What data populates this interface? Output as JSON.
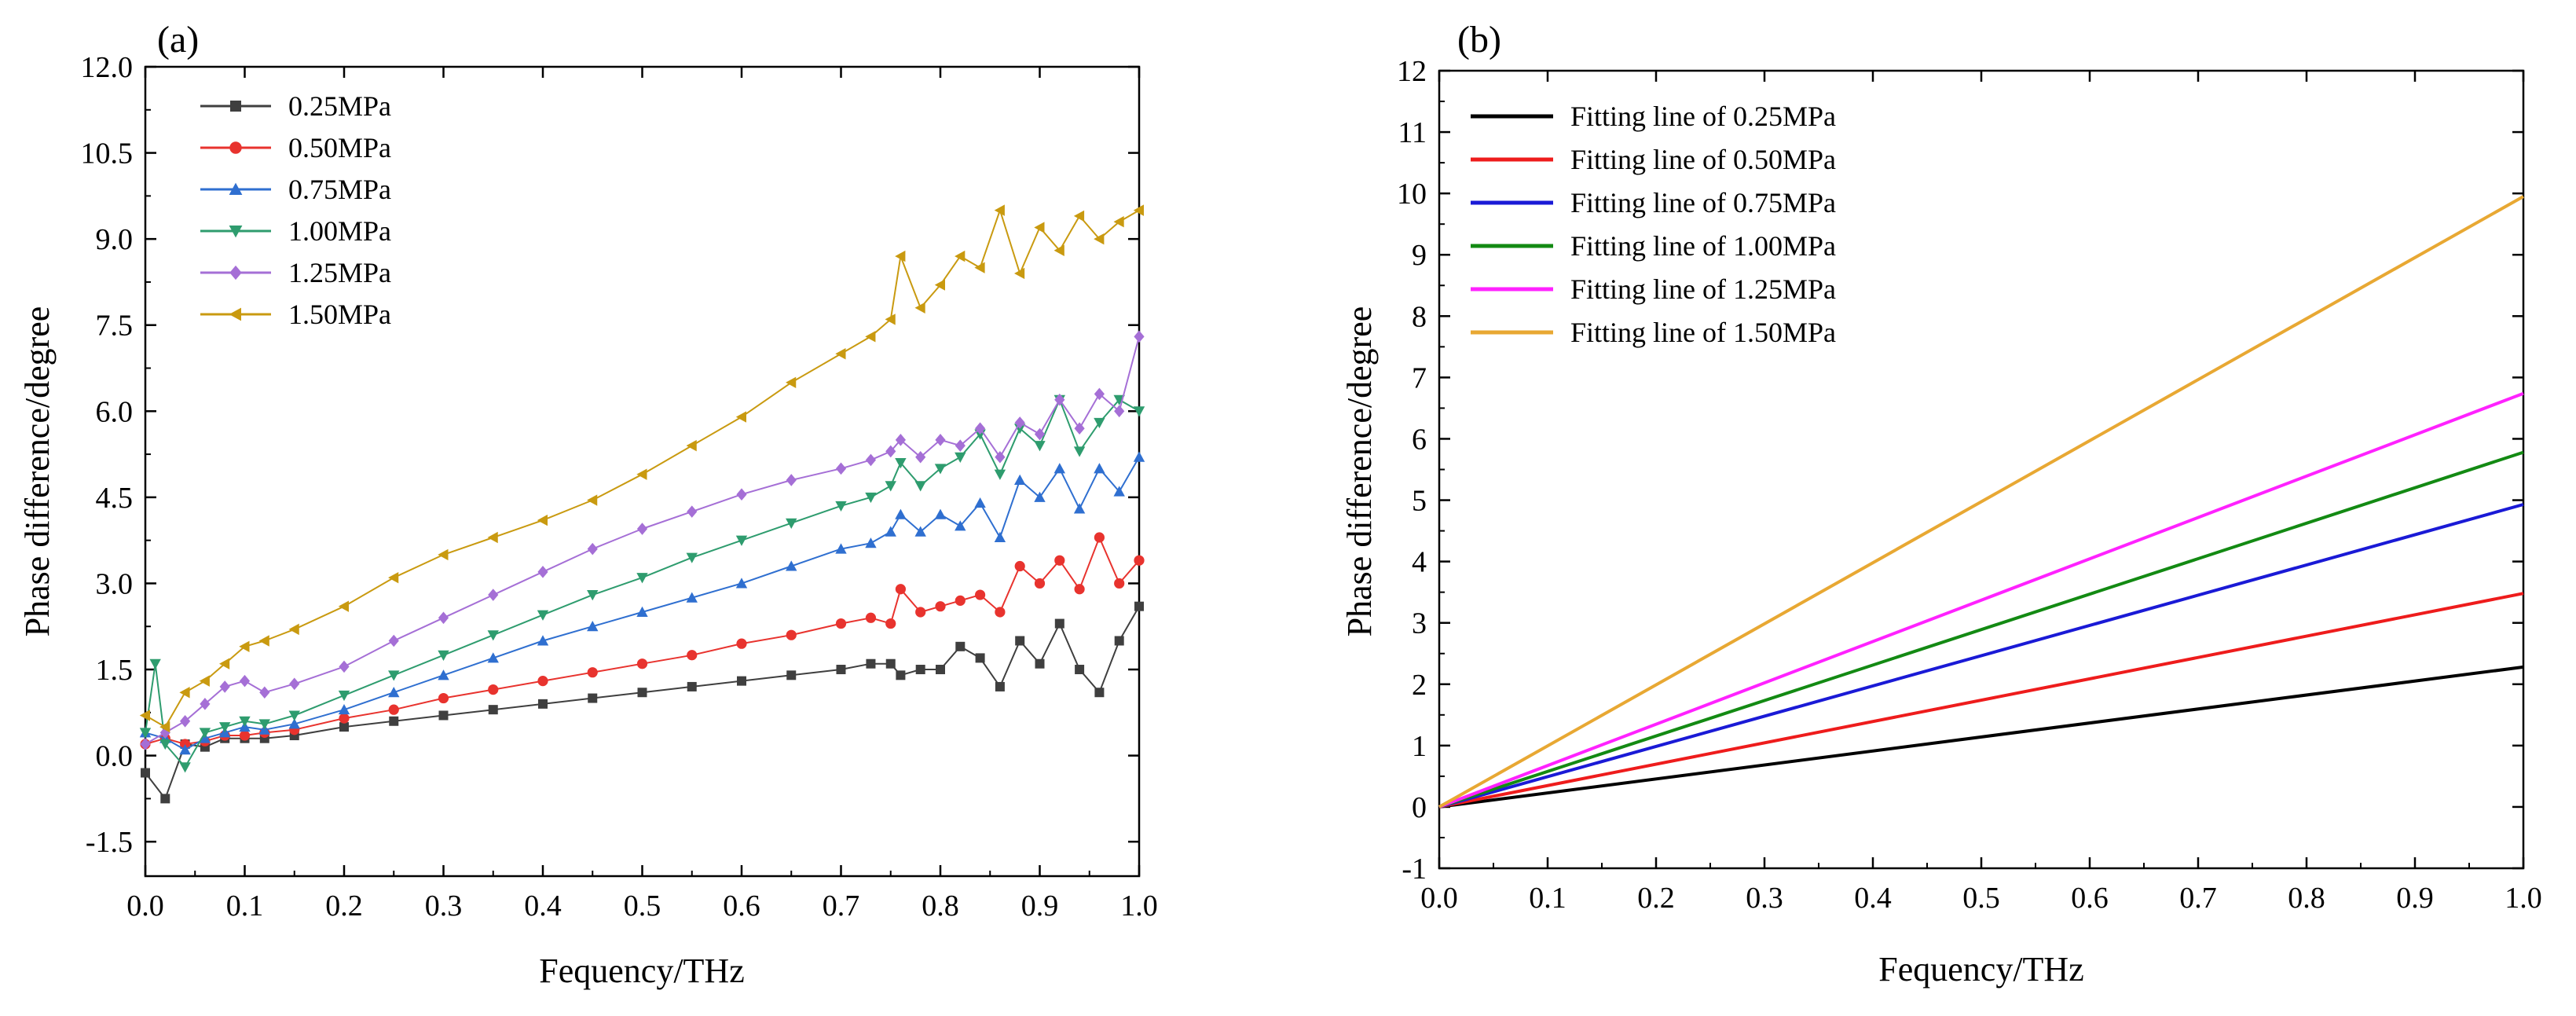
{
  "chart_data": [
    {
      "panel": "(a)",
      "type": "line",
      "xlabel": "Fequency/THz",
      "ylabel": "Phase difference/degree",
      "xlim": [
        0.0,
        1.0
      ],
      "ylim": [
        -2.1,
        12.0
      ],
      "xticks": [
        "0.0",
        "0.1",
        "0.2",
        "0.3",
        "0.4",
        "0.5",
        "0.6",
        "0.7",
        "0.8",
        "0.9",
        "1.0"
      ],
      "yticks": [
        "-1.5",
        "0.0",
        "1.5",
        "3.0",
        "4.5",
        "6.0",
        "7.5",
        "9.0",
        "10.5",
        "12.0"
      ],
      "legend_position": "top-left",
      "series": [
        {
          "name": "0.25MPa",
          "color": "#3f3f3f",
          "marker": "square",
          "x": [
            0.0,
            0.02,
            0.04,
            0.06,
            0.08,
            0.1,
            0.12,
            0.15,
            0.2,
            0.25,
            0.3,
            0.35,
            0.4,
            0.45,
            0.5,
            0.55,
            0.6,
            0.65,
            0.7,
            0.73,
            0.75,
            0.76,
            0.78,
            0.8,
            0.82,
            0.84,
            0.86,
            0.88,
            0.9,
            0.92,
            0.94,
            0.96,
            0.98,
            1.0
          ],
          "y": [
            -0.3,
            -0.75,
            0.2,
            0.15,
            0.3,
            0.3,
            0.3,
            0.35,
            0.5,
            0.6,
            0.7,
            0.8,
            0.9,
            1.0,
            1.1,
            1.2,
            1.3,
            1.4,
            1.5,
            1.6,
            1.6,
            1.4,
            1.5,
            1.5,
            1.9,
            1.7,
            1.2,
            2.0,
            1.6,
            2.3,
            1.5,
            1.1,
            2.0,
            2.6
          ]
        },
        {
          "name": "0.50MPa",
          "color": "#e8332e",
          "marker": "circle",
          "x": [
            0.0,
            0.02,
            0.04,
            0.06,
            0.08,
            0.1,
            0.12,
            0.15,
            0.2,
            0.25,
            0.3,
            0.35,
            0.4,
            0.45,
            0.5,
            0.55,
            0.6,
            0.65,
            0.7,
            0.73,
            0.75,
            0.76,
            0.78,
            0.8,
            0.82,
            0.84,
            0.86,
            0.88,
            0.9,
            0.92,
            0.94,
            0.96,
            0.98,
            1.0
          ],
          "y": [
            0.2,
            0.3,
            0.2,
            0.25,
            0.35,
            0.35,
            0.4,
            0.45,
            0.65,
            0.8,
            1.0,
            1.15,
            1.3,
            1.45,
            1.6,
            1.75,
            1.95,
            2.1,
            2.3,
            2.4,
            2.3,
            2.9,
            2.5,
            2.6,
            2.7,
            2.8,
            2.5,
            3.3,
            3.0,
            3.4,
            2.9,
            3.8,
            3.0,
            3.4
          ]
        },
        {
          "name": "0.75MPa",
          "color": "#2f6fd0",
          "marker": "triangle-up",
          "x": [
            0.0,
            0.02,
            0.04,
            0.06,
            0.08,
            0.1,
            0.12,
            0.15,
            0.2,
            0.25,
            0.3,
            0.35,
            0.4,
            0.45,
            0.5,
            0.55,
            0.6,
            0.65,
            0.7,
            0.73,
            0.75,
            0.76,
            0.78,
            0.8,
            0.82,
            0.84,
            0.86,
            0.88,
            0.9,
            0.92,
            0.94,
            0.96,
            0.98,
            1.0
          ],
          "y": [
            0.4,
            0.3,
            0.1,
            0.3,
            0.4,
            0.5,
            0.45,
            0.55,
            0.8,
            1.1,
            1.4,
            1.7,
            2.0,
            2.25,
            2.5,
            2.75,
            3.0,
            3.3,
            3.6,
            3.7,
            3.9,
            4.2,
            3.9,
            4.2,
            4.0,
            4.4,
            3.8,
            4.8,
            4.5,
            5.0,
            4.3,
            5.0,
            4.6,
            5.2
          ]
        },
        {
          "name": "1.00MPa",
          "color": "#2e9c6e",
          "marker": "triangle-down",
          "x": [
            0.0,
            0.01,
            0.02,
            0.04,
            0.06,
            0.08,
            0.1,
            0.12,
            0.15,
            0.2,
            0.25,
            0.3,
            0.35,
            0.4,
            0.45,
            0.5,
            0.55,
            0.6,
            0.65,
            0.7,
            0.73,
            0.75,
            0.76,
            0.78,
            0.8,
            0.82,
            0.84,
            0.86,
            0.88,
            0.9,
            0.92,
            0.94,
            0.96,
            0.98,
            1.0
          ],
          "y": [
            0.4,
            1.6,
            0.2,
            -0.2,
            0.4,
            0.5,
            0.6,
            0.55,
            0.7,
            1.05,
            1.4,
            1.75,
            2.1,
            2.45,
            2.8,
            3.1,
            3.45,
            3.75,
            4.05,
            4.35,
            4.5,
            4.7,
            5.1,
            4.7,
            5.0,
            5.2,
            5.6,
            4.9,
            5.7,
            5.4,
            6.2,
            5.3,
            5.8,
            6.2,
            6.0
          ]
        },
        {
          "name": "1.25MPa",
          "color": "#a56fd6",
          "marker": "diamond",
          "x": [
            0.0,
            0.02,
            0.04,
            0.06,
            0.08,
            0.1,
            0.12,
            0.15,
            0.2,
            0.25,
            0.3,
            0.35,
            0.4,
            0.45,
            0.5,
            0.55,
            0.6,
            0.65,
            0.7,
            0.73,
            0.75,
            0.76,
            0.78,
            0.8,
            0.82,
            0.84,
            0.86,
            0.88,
            0.9,
            0.92,
            0.94,
            0.96,
            0.98,
            1.0
          ],
          "y": [
            0.2,
            0.4,
            0.6,
            0.9,
            1.2,
            1.3,
            1.1,
            1.25,
            1.55,
            2.0,
            2.4,
            2.8,
            3.2,
            3.6,
            3.95,
            4.25,
            4.55,
            4.8,
            5.0,
            5.15,
            5.3,
            5.5,
            5.2,
            5.5,
            5.4,
            5.7,
            5.2,
            5.8,
            5.6,
            6.2,
            5.7,
            6.3,
            6.0,
            7.3
          ]
        },
        {
          "name": "1.50MPa",
          "color": "#c99a10",
          "marker": "triangle-left",
          "x": [
            0.0,
            0.02,
            0.04,
            0.06,
            0.08,
            0.1,
            0.12,
            0.15,
            0.2,
            0.25,
            0.3,
            0.35,
            0.4,
            0.45,
            0.5,
            0.55,
            0.6,
            0.65,
            0.7,
            0.73,
            0.75,
            0.76,
            0.78,
            0.8,
            0.82,
            0.84,
            0.86,
            0.88,
            0.9,
            0.92,
            0.94,
            0.96,
            0.98,
            1.0
          ],
          "y": [
            0.7,
            0.5,
            1.1,
            1.3,
            1.6,
            1.9,
            2.0,
            2.2,
            2.6,
            3.1,
            3.5,
            3.8,
            4.1,
            4.45,
            4.9,
            5.4,
            5.9,
            6.5,
            7.0,
            7.3,
            7.6,
            8.7,
            7.8,
            8.2,
            8.7,
            8.5,
            9.5,
            8.4,
            9.2,
            8.8,
            9.4,
            9.0,
            9.3,
            9.5
          ]
        }
      ]
    },
    {
      "panel": "(b)",
      "type": "line",
      "xlabel": "Fequency/THz",
      "ylabel": "Phase difference/degree",
      "xlim": [
        0.0,
        1.0
      ],
      "ylim": [
        -1,
        12
      ],
      "xticks": [
        "0.0",
        "0.1",
        "0.2",
        "0.3",
        "0.4",
        "0.5",
        "0.6",
        "0.7",
        "0.8",
        "0.9",
        "1.0"
      ],
      "yticks": [
        "-1",
        "0",
        "1",
        "2",
        "3",
        "4",
        "5",
        "6",
        "7",
        "8",
        "9",
        "10",
        "11",
        "12"
      ],
      "legend_position": "top-left",
      "series": [
        {
          "name": "Fitting line of 0.25MPa",
          "color": "#000000",
          "x": [
            0.0,
            1.0
          ],
          "y": [
            0.0,
            2.28
          ]
        },
        {
          "name": "Fitting line of 0.50MPa",
          "color": "#ee1c1c",
          "x": [
            0.0,
            1.0
          ],
          "y": [
            0.0,
            3.48
          ]
        },
        {
          "name": "Fitting line of 0.75MPa",
          "color": "#1a1ad6",
          "x": [
            0.0,
            1.0
          ],
          "y": [
            0.0,
            4.93
          ]
        },
        {
          "name": "Fitting line of 1.00MPa",
          "color": "#138a13",
          "x": [
            0.0,
            1.0
          ],
          "y": [
            0.0,
            5.78
          ]
        },
        {
          "name": "Fitting line of 1.25MPa",
          "color": "#ff22ff",
          "x": [
            0.0,
            1.0
          ],
          "y": [
            0.0,
            6.74
          ]
        },
        {
          "name": "Fitting line of 1.50MPa",
          "color": "#e8a833",
          "x": [
            0.0,
            1.0
          ],
          "y": [
            0.0,
            9.95
          ]
        }
      ]
    }
  ]
}
